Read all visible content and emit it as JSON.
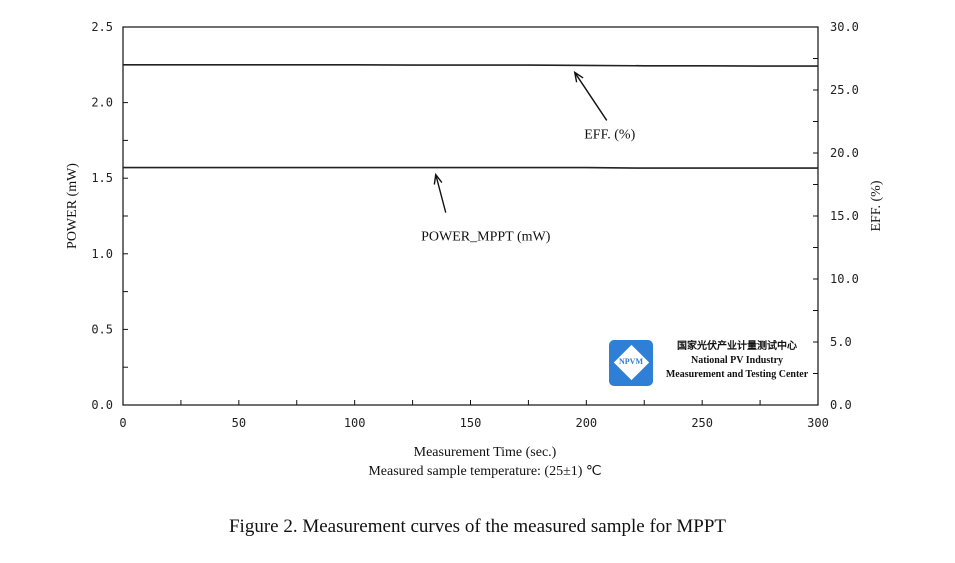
{
  "chart_data": {
    "type": "line",
    "xlabel": "Measurement Time (sec.)",
    "xlabel2": "Measured sample temperature: (25±1) ℃",
    "ylabel_left": "POWER (mW)",
    "ylabel_right": "EFF. (%)",
    "xlim": [
      0,
      300
    ],
    "ylim_left": [
      0,
      2.5
    ],
    "ylim_right": [
      0,
      30
    ],
    "x_ticks": [
      "0",
      "50",
      "100",
      "150",
      "200",
      "250",
      "300"
    ],
    "y_left_ticks": [
      "0.0",
      "0.5",
      "1.0",
      "1.5",
      "2.0",
      "2.5"
    ],
    "y_right_ticks": [
      "0.0",
      "5.0",
      "10.0",
      "15.0",
      "20.0",
      "25.0",
      "30.0"
    ],
    "grid": false,
    "x": [
      0,
      25,
      50,
      75,
      100,
      125,
      150,
      175,
      200,
      225,
      250,
      275,
      300
    ],
    "series": [
      {
        "name": "POWER_MPPT (mW)",
        "axis": "left",
        "values": [
          1.57,
          1.57,
          1.57,
          1.57,
          1.57,
          1.57,
          1.57,
          1.57,
          1.57,
          1.567,
          1.567,
          1.567,
          1.567
        ]
      },
      {
        "name": "EFF. (%)",
        "axis": "right",
        "values": [
          27.0,
          27.0,
          27.0,
          27.0,
          27.0,
          26.98,
          26.98,
          26.98,
          26.95,
          26.92,
          26.92,
          26.9,
          26.9
        ]
      }
    ],
    "annotations": [
      {
        "text": "EFF. (%)",
        "points_to_x": 195,
        "series": 1
      },
      {
        "text": "POWER_MPPT (mW)",
        "points_to_x": 135,
        "series": 0
      }
    ]
  },
  "logo": {
    "badge": "NPVM",
    "line_cn": "国家光伏产业计量测试中心",
    "line1": "National PV Industry",
    "line2": "Measurement and Testing Center"
  },
  "caption": "Figure 2. Measurement curves of the measured sample for MPPT"
}
